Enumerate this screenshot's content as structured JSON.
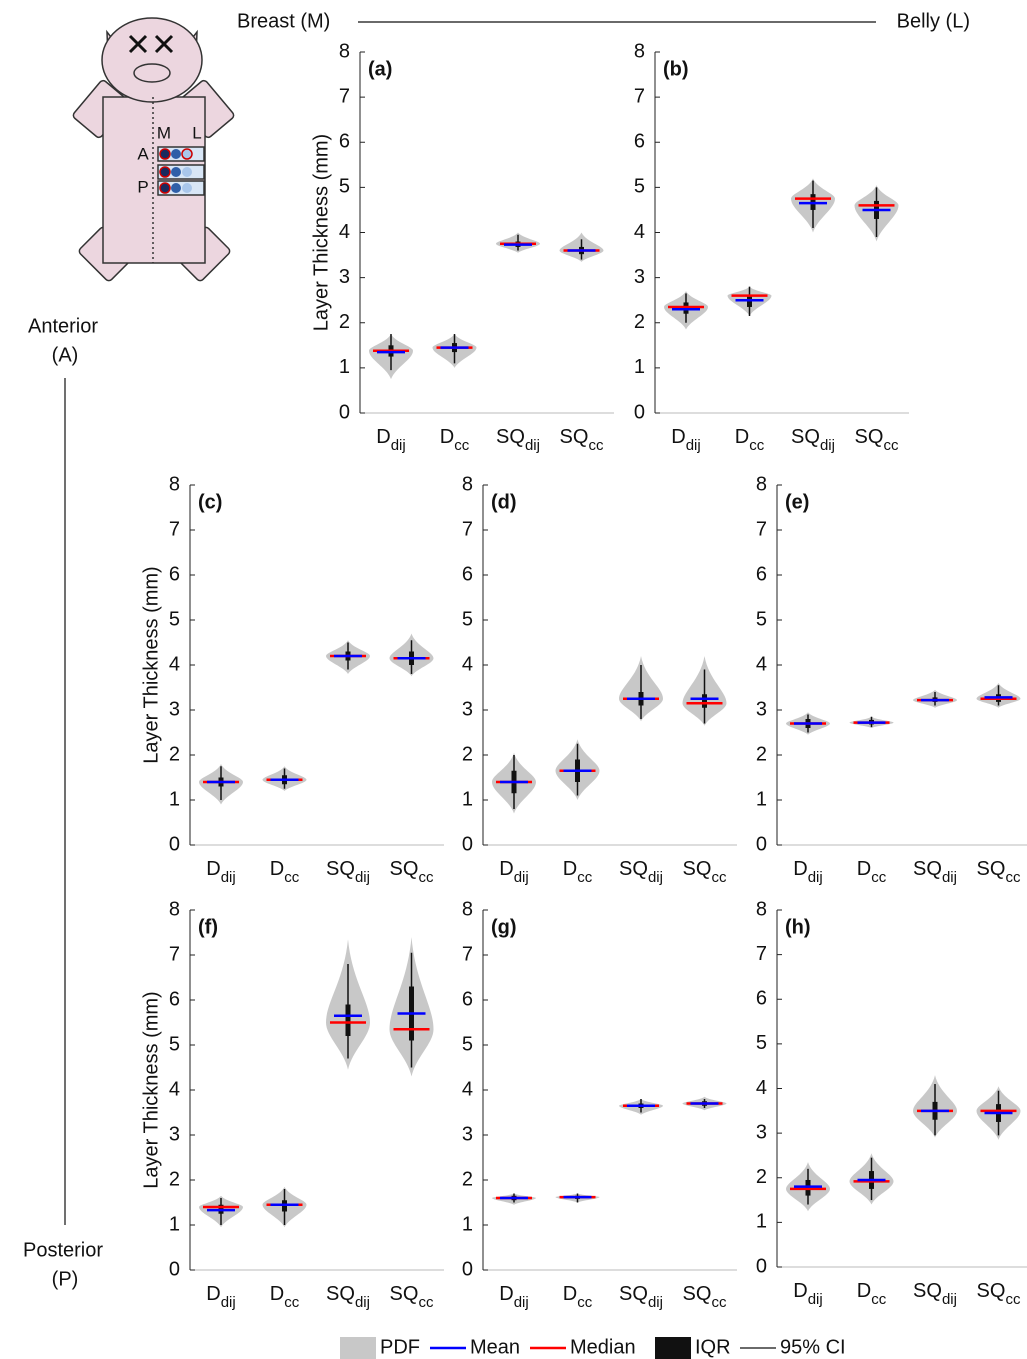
{
  "figure": {
    "breast": "Breast (M)",
    "belly": "Belly (L)",
    "anterior": "Anterior",
    "anterior_short": "(A)",
    "posterior": "Posterior",
    "posterior_short": "(P)"
  },
  "diagram": {
    "medial": "M",
    "lateral": "L",
    "anterior": "A",
    "posterior": "P"
  },
  "legend": [
    {
      "name": "PDF",
      "color": "#c8c8c8"
    },
    {
      "name": "Mean",
      "color": "#0000ff"
    },
    {
      "name": "Median",
      "color": "#ff0000"
    },
    {
      "name": "IQR",
      "color": "#111111"
    },
    {
      "name": "95% CI",
      "color": "#111111"
    }
  ],
  "chart_data": [
    {
      "type": "violin",
      "panel_label": "(a)",
      "ylabel": "Layer Thickness (mm)",
      "categories": [
        {
          "label": "D",
          "sub": "dij"
        },
        {
          "label": "D",
          "sub": "cc"
        },
        {
          "label": "SQ",
          "sub": "dij"
        },
        {
          "label": "SQ",
          "sub": "cc"
        }
      ],
      "ylim": [
        0,
        8
      ],
      "yticks": [
        0,
        1,
        2,
        3,
        4,
        5,
        6,
        7,
        8
      ],
      "mean": [
        1.35,
        1.45,
        3.73,
        3.6
      ],
      "median": [
        1.38,
        1.45,
        3.75,
        3.6
      ],
      "q1": [
        1.25,
        1.35,
        3.68,
        3.52
      ],
      "q3": [
        1.5,
        1.55,
        3.8,
        3.68
      ],
      "ci_low": [
        0.95,
        1.1,
        3.6,
        3.4
      ],
      "ci_high": [
        1.75,
        1.75,
        3.95,
        3.85
      ],
      "min": [
        0.75,
        1.0,
        3.55,
        3.35
      ],
      "max": [
        1.75,
        1.75,
        4.0,
        4.0
      ]
    },
    {
      "type": "violin",
      "panel_label": "(b)",
      "categories": [
        {
          "label": "D",
          "sub": "dij"
        },
        {
          "label": "D",
          "sub": "cc"
        },
        {
          "label": "SQ",
          "sub": "dij"
        },
        {
          "label": "SQ",
          "sub": "cc"
        }
      ],
      "ylim": [
        0,
        8
      ],
      "yticks": [
        0,
        1,
        2,
        3,
        4,
        5,
        6,
        7,
        8
      ],
      "mean": [
        2.3,
        2.5,
        4.65,
        4.5
      ],
      "median": [
        2.35,
        2.6,
        4.75,
        4.6
      ],
      "q1": [
        2.2,
        2.35,
        4.5,
        4.3
      ],
      "q3": [
        2.45,
        2.6,
        4.85,
        4.7
      ],
      "ci_low": [
        2.0,
        2.15,
        4.1,
        3.9
      ],
      "ci_high": [
        2.65,
        2.8,
        5.15,
        5.0
      ],
      "min": [
        1.85,
        2.15,
        4.0,
        3.8
      ],
      "max": [
        2.7,
        2.8,
        5.2,
        5.05
      ]
    },
    {
      "type": "violin",
      "panel_label": "(c)",
      "ylabel": "Layer Thickness (mm)",
      "categories": [
        {
          "label": "D",
          "sub": "dij"
        },
        {
          "label": "D",
          "sub": "cc"
        },
        {
          "label": "SQ",
          "sub": "dij"
        },
        {
          "label": "SQ",
          "sub": "cc"
        }
      ],
      "ylim": [
        0,
        8
      ],
      "yticks": [
        0,
        1,
        2,
        3,
        4,
        5,
        6,
        7,
        8
      ],
      "mean": [
        1.4,
        1.45,
        4.2,
        4.15
      ],
      "median": [
        1.4,
        1.45,
        4.2,
        4.15
      ],
      "q1": [
        1.3,
        1.35,
        4.1,
        4.0
      ],
      "q3": [
        1.5,
        1.55,
        4.3,
        4.3
      ],
      "ci_low": [
        1.0,
        1.25,
        3.9,
        3.8
      ],
      "ci_high": [
        1.75,
        1.7,
        4.5,
        4.55
      ],
      "min": [
        0.9,
        1.2,
        3.8,
        3.75
      ],
      "max": [
        1.8,
        1.75,
        4.55,
        4.7
      ]
    },
    {
      "type": "violin",
      "panel_label": "(d)",
      "categories": [
        {
          "label": "D",
          "sub": "dij"
        },
        {
          "label": "D",
          "sub": "cc"
        },
        {
          "label": "SQ",
          "sub": "dij"
        },
        {
          "label": "SQ",
          "sub": "cc"
        }
      ],
      "ylim": [
        0,
        8
      ],
      "yticks": [
        0,
        1,
        2,
        3,
        4,
        5,
        6,
        7,
        8
      ],
      "mean": [
        1.4,
        1.65,
        3.25,
        3.25
      ],
      "median": [
        1.4,
        1.65,
        3.25,
        3.15
      ],
      "q1": [
        1.15,
        1.4,
        3.1,
        3.05
      ],
      "q3": [
        1.65,
        1.9,
        3.4,
        3.35
      ],
      "ci_low": [
        0.8,
        1.1,
        2.8,
        2.7
      ],
      "ci_high": [
        2.0,
        2.25,
        4.0,
        3.9
      ],
      "min": [
        0.7,
        1.0,
        2.75,
        2.65
      ],
      "max": [
        2.05,
        2.35,
        4.2,
        4.2
      ]
    },
    {
      "type": "violin",
      "panel_label": "(e)",
      "categories": [
        {
          "label": "D",
          "sub": "dij"
        },
        {
          "label": "D",
          "sub": "cc"
        },
        {
          "label": "SQ",
          "sub": "dij"
        },
        {
          "label": "SQ",
          "sub": "cc"
        }
      ],
      "ylim": [
        0,
        8
      ],
      "yticks": [
        0,
        1,
        2,
        3,
        4,
        5,
        6,
        7,
        8
      ],
      "mean": [
        2.7,
        2.72,
        3.22,
        3.28
      ],
      "median": [
        2.7,
        2.72,
        3.22,
        3.25
      ],
      "q1": [
        2.6,
        2.68,
        3.18,
        3.18
      ],
      "q3": [
        2.8,
        2.78,
        3.28,
        3.35
      ],
      "ci_low": [
        2.5,
        2.62,
        3.1,
        3.1
      ],
      "ci_high": [
        2.9,
        2.85,
        3.4,
        3.55
      ],
      "min": [
        2.45,
        2.6,
        3.05,
        3.05
      ],
      "max": [
        2.95,
        2.85,
        3.45,
        3.6
      ]
    },
    {
      "type": "violin",
      "panel_label": "(f)",
      "ylabel": "Layer Thickness (mm)",
      "categories": [
        {
          "label": "D",
          "sub": "dij"
        },
        {
          "label": "D",
          "sub": "cc"
        },
        {
          "label": "SQ",
          "sub": "dij"
        },
        {
          "label": "SQ",
          "sub": "cc"
        }
      ],
      "ylim": [
        0,
        8
      ],
      "yticks": [
        0,
        1,
        2,
        3,
        4,
        5,
        6,
        7,
        8
      ],
      "mean": [
        1.33,
        1.45,
        5.65,
        5.7
      ],
      "median": [
        1.4,
        1.45,
        5.5,
        5.35
      ],
      "q1": [
        1.25,
        1.3,
        5.2,
        5.1
      ],
      "q3": [
        1.45,
        1.55,
        5.9,
        6.3
      ],
      "ci_low": [
        1.0,
        1.0,
        4.7,
        4.5
      ],
      "ci_high": [
        1.6,
        1.8,
        6.8,
        7.05
      ],
      "min": [
        0.95,
        0.95,
        4.45,
        4.3
      ],
      "max": [
        1.65,
        1.85,
        7.35,
        7.4
      ]
    },
    {
      "type": "violin",
      "panel_label": "(g)",
      "categories": [
        {
          "label": "D",
          "sub": "dij"
        },
        {
          "label": "D",
          "sub": "cc"
        },
        {
          "label": "SQ",
          "sub": "dij"
        },
        {
          "label": "SQ",
          "sub": "cc"
        }
      ],
      "ylim": [
        0,
        8
      ],
      "yticks": [
        0,
        1,
        2,
        3,
        4,
        5,
        6,
        7,
        8
      ],
      "mean": [
        1.6,
        1.62,
        3.65,
        3.7
      ],
      "median": [
        1.6,
        1.62,
        3.65,
        3.7
      ],
      "q1": [
        1.55,
        1.58,
        3.6,
        3.65
      ],
      "q3": [
        1.65,
        1.65,
        3.7,
        3.75
      ],
      "ci_low": [
        1.5,
        1.5,
        3.5,
        3.6
      ],
      "ci_high": [
        1.7,
        1.7,
        3.8,
        3.8
      ],
      "min": [
        1.45,
        1.5,
        3.45,
        3.55
      ],
      "max": [
        1.7,
        1.7,
        3.8,
        3.85
      ]
    },
    {
      "type": "violin",
      "panel_label": "(h)",
      "categories": [
        {
          "label": "D",
          "sub": "dij"
        },
        {
          "label": "D",
          "sub": "cc"
        },
        {
          "label": "SQ",
          "sub": "dij"
        },
        {
          "label": "SQ",
          "sub": "cc"
        }
      ],
      "ylim": [
        0,
        8
      ],
      "yticks": [
        0,
        1,
        2,
        3,
        4,
        5,
        6,
        7,
        8
      ],
      "mean": [
        1.8,
        1.95,
        3.5,
        3.45
      ],
      "median": [
        1.75,
        1.92,
        3.5,
        3.5
      ],
      "q1": [
        1.6,
        1.75,
        3.3,
        3.25
      ],
      "q3": [
        1.95,
        2.15,
        3.7,
        3.65
      ],
      "ci_low": [
        1.4,
        1.5,
        2.95,
        2.95
      ],
      "ci_high": [
        2.2,
        2.45,
        4.1,
        3.95
      ],
      "min": [
        1.25,
        1.4,
        2.9,
        2.85
      ],
      "max": [
        2.35,
        2.55,
        4.3,
        4.05
      ]
    }
  ]
}
